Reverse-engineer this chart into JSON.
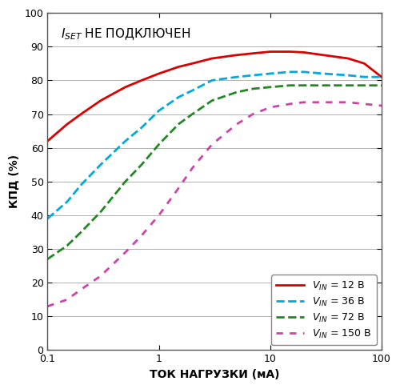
{
  "xlabel": "ТОК НАГРУЗКИ (мА)",
  "ylabel": "КПД (%)",
  "xlim_log": [
    0.1,
    100
  ],
  "ylim": [
    0,
    100
  ],
  "yticks": [
    0,
    10,
    20,
    30,
    40,
    50,
    60,
    70,
    80,
    90,
    100
  ],
  "xticks": [
    0.1,
    1,
    10,
    100
  ],
  "xtick_labels": [
    "0.1",
    "1",
    "10",
    "100"
  ],
  "background_color": "#ffffff",
  "grid_color": "#b0b0b0",
  "curves": [
    {
      "label_main": "V",
      "label_sub": "IN",
      "label_rest": " = 12 В",
      "color": "#dd0000",
      "linestyle": "-",
      "linewidth": 2.0,
      "x": [
        0.1,
        0.15,
        0.2,
        0.3,
        0.5,
        0.7,
        1.0,
        1.5,
        2,
        3,
        5,
        7,
        10,
        15,
        20,
        30,
        50,
        70,
        100
      ],
      "y": [
        62,
        67,
        70,
        74,
        78,
        80,
        82,
        84,
        85,
        86.5,
        87.5,
        88,
        88.5,
        88.5,
        88.3,
        87.5,
        86.5,
        85,
        81
      ]
    },
    {
      "label_main": "V",
      "label_sub": "IN",
      "label_rest": " = 36 В",
      "color": "#00aadd",
      "linestyle": "--",
      "linewidth": 2.0,
      "x": [
        0.1,
        0.15,
        0.2,
        0.3,
        0.5,
        0.7,
        1.0,
        1.5,
        2,
        3,
        5,
        7,
        10,
        15,
        20,
        30,
        50,
        70,
        100
      ],
      "y": [
        39,
        44,
        49,
        55,
        62,
        66,
        71,
        75,
        77,
        80,
        81,
        81.5,
        82,
        82.5,
        82.5,
        82,
        81.5,
        81,
        81
      ]
    },
    {
      "label_main": "V",
      "label_sub": "IN",
      "label_rest": " = 72 В",
      "color": "#228822",
      "linestyle": "--",
      "linewidth": 2.0,
      "x": [
        0.1,
        0.15,
        0.2,
        0.3,
        0.5,
        0.7,
        1.0,
        1.5,
        2,
        3,
        5,
        7,
        10,
        15,
        20,
        30,
        50,
        70,
        100
      ],
      "y": [
        27,
        31,
        35,
        41,
        50,
        55,
        61,
        67,
        70,
        74,
        76.5,
        77.5,
        78,
        78.5,
        78.5,
        78.5,
        78.5,
        78.5,
        78.5
      ]
    },
    {
      "label_main": "V",
      "label_sub": "IN",
      "label_rest": " = 150 В",
      "color": "#cc44aa",
      "linestyle": "--",
      "linewidth": 2.0,
      "dashes": [
        3,
        3
      ],
      "x": [
        0.1,
        0.15,
        0.2,
        0.3,
        0.5,
        0.7,
        1.0,
        1.5,
        2,
        3,
        5,
        7,
        10,
        15,
        20,
        30,
        50,
        70,
        100
      ],
      "y": [
        13,
        15,
        18,
        22,
        29,
        34,
        40,
        48,
        54,
        61,
        67,
        70,
        72,
        73,
        73.5,
        73.5,
        73.5,
        73,
        72.5
      ]
    }
  ],
  "title_fontsize": 11,
  "label_fontsize": 10,
  "tick_fontsize": 9,
  "legend_fontsize": 9
}
